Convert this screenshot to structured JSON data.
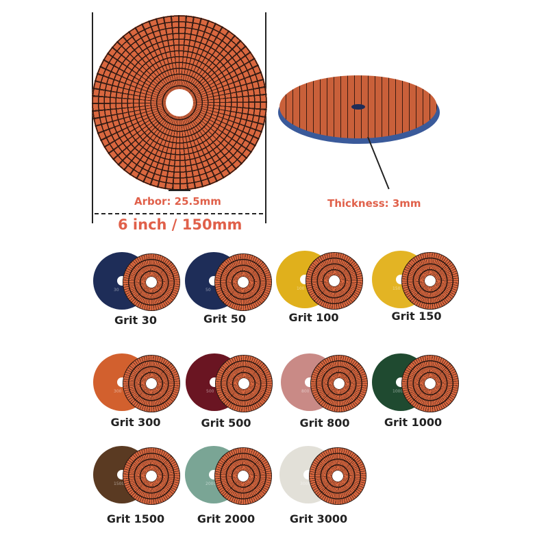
{
  "dimensions": {
    "arbor": "Arbor: 25.5mm",
    "diameter": "6 inch / 150mm",
    "thickness": "Thickness: 3mm"
  },
  "colors": {
    "pad_face": "#d9673f",
    "pad_base_side": "#3a5a9a"
  },
  "grits": [
    {
      "label": "Grit 30",
      "number": "30",
      "color": "#1e2d58"
    },
    {
      "label": "Grit 50",
      "number": "50",
      "color": "#1e2d58"
    },
    {
      "label": "Grit 100",
      "number": "100",
      "color": "#e0b01c"
    },
    {
      "label": "Grit 150",
      "number": "150",
      "color": "#e3b424"
    },
    {
      "label": "Grit 300",
      "number": "300",
      "color": "#d2602e"
    },
    {
      "label": "Grit 500",
      "number": "500",
      "color": "#6a1522"
    },
    {
      "label": "Grit 800",
      "number": "800",
      "color": "#c98a86"
    },
    {
      "label": "Grit 1000",
      "number": "1000",
      "color": "#1f4a30"
    },
    {
      "label": "Grit 1500",
      "number": "1500",
      "color": "#5a3a22"
    },
    {
      "label": "Grit 2000",
      "number": "2000",
      "color": "#7aa595"
    },
    {
      "label": "Grit 3000",
      "number": "3000",
      "color": "#e2e0d8"
    }
  ]
}
